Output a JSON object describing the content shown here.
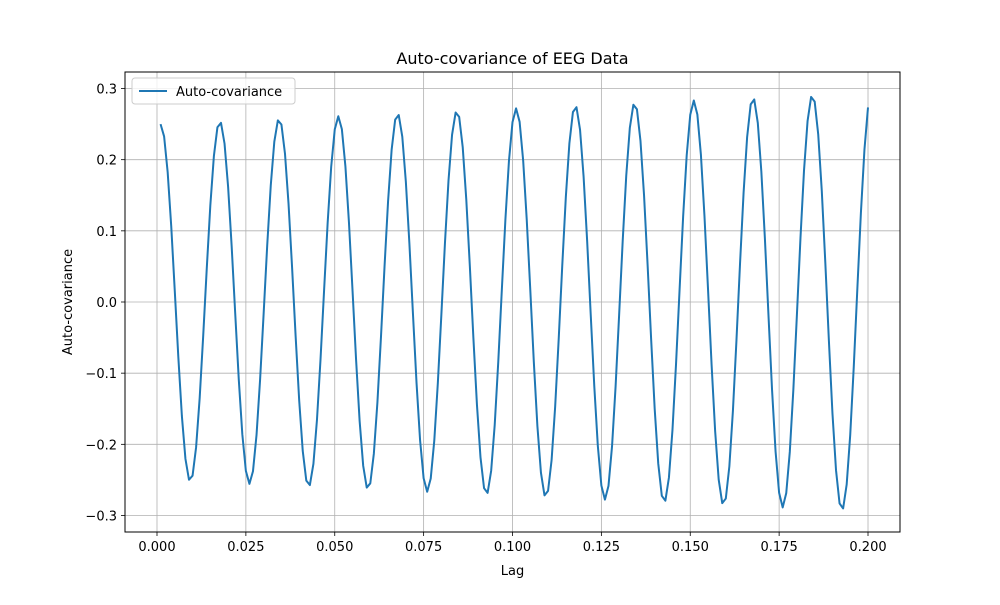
{
  "chart_data": {
    "type": "line",
    "title": "Auto-covariance of EEG Data",
    "xlabel": "Lag",
    "ylabel": "Auto-covariance",
    "xlim": [
      -0.009,
      0.209
    ],
    "ylim": [
      -0.3232,
      0.3232
    ],
    "xticks": [
      0.0,
      0.025,
      0.05,
      0.075,
      0.1,
      0.125,
      0.15,
      0.175,
      0.2
    ],
    "xtick_labels": [
      "0.000",
      "0.025",
      "0.050",
      "0.075",
      "0.100",
      "0.125",
      "0.150",
      "0.175",
      "0.200"
    ],
    "yticks": [
      -0.3,
      -0.2,
      -0.1,
      0.0,
      0.1,
      0.2,
      0.3
    ],
    "ytick_labels": [
      "−0.3",
      "−0.2",
      "−0.1",
      "0.0",
      "0.1",
      "0.2",
      "0.3"
    ],
    "grid": true,
    "legend": {
      "position": "top-left",
      "entries": [
        "Auto-covariance"
      ]
    },
    "series": [
      {
        "name": "Auto-covariance",
        "color": "#1f77b4",
        "x_start": 0.001,
        "x_end": 0.2,
        "frequency_hz": 60,
        "amplitude_start": 0.25,
        "amplitude_end": 0.294,
        "phase": 0.0,
        "num_points": 200
      }
    ]
  }
}
